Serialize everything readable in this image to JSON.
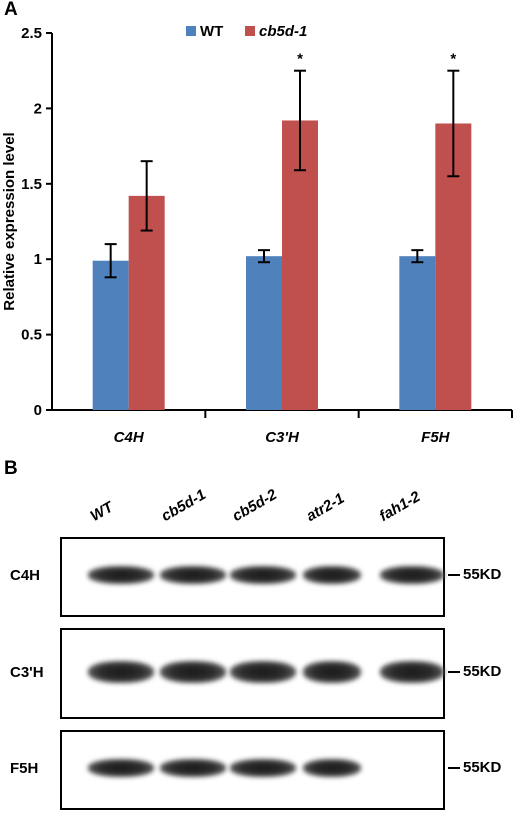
{
  "panel_a": {
    "letter": "A"
  },
  "panel_b": {
    "letter": "B",
    "lanes": [
      "WT",
      "cb5d-1",
      "cb5d-2",
      "atr2-1",
      "fah1-2"
    ],
    "blots": [
      {
        "label": "C4H",
        "marker": "55KD",
        "bands": [
          1,
          1,
          1,
          1,
          1
        ]
      },
      {
        "label": "C3'H",
        "marker": "55KD",
        "bands": [
          1,
          1,
          1,
          1,
          1
        ]
      },
      {
        "label": "F5H",
        "marker": "55KD",
        "bands": [
          1,
          1,
          1,
          1,
          0
        ]
      }
    ]
  },
  "chart_data": {
    "type": "bar",
    "categories": [
      "C4H",
      "C3'H",
      "F5H"
    ],
    "series": [
      {
        "name": "WT",
        "color": "#4F81BD",
        "values": [
          0.99,
          1.02,
          1.02
        ],
        "errors": [
          0.11,
          0.04,
          0.04
        ]
      },
      {
        "name": "cb5d-1",
        "color": "#C0504D",
        "values": [
          1.42,
          1.92,
          1.9
        ],
        "errors": [
          0.23,
          0.33,
          0.35
        ]
      }
    ],
    "significance": [
      "",
      "*",
      "*"
    ],
    "ylabel": "Relative expression level",
    "ylim": [
      0,
      2.5
    ],
    "yticks": [
      "0",
      "0.5",
      "1",
      "1.5",
      "2",
      "2.5"
    ],
    "grid": false,
    "legend_position": "top"
  }
}
